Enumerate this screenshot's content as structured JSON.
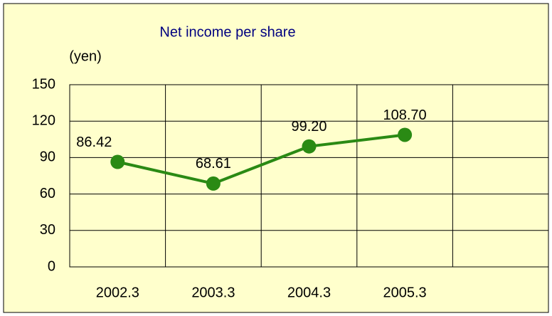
{
  "chart_data": {
    "type": "line",
    "title": "Net income per share",
    "y_label": "(yen)",
    "categories": [
      "2002.3",
      "2003.3",
      "2004.3",
      "2005.3",
      null
    ],
    "values": [
      86.42,
      68.61,
      99.2,
      108.7,
      null
    ],
    "value_labels": [
      "86.42",
      "68.61",
      "99.20",
      "108.70",
      null
    ],
    "color": "#2a8a14",
    "ylim": [
      0,
      150
    ],
    "yticks": [
      0,
      30,
      60,
      90,
      120,
      150
    ],
    "grid": true
  }
}
